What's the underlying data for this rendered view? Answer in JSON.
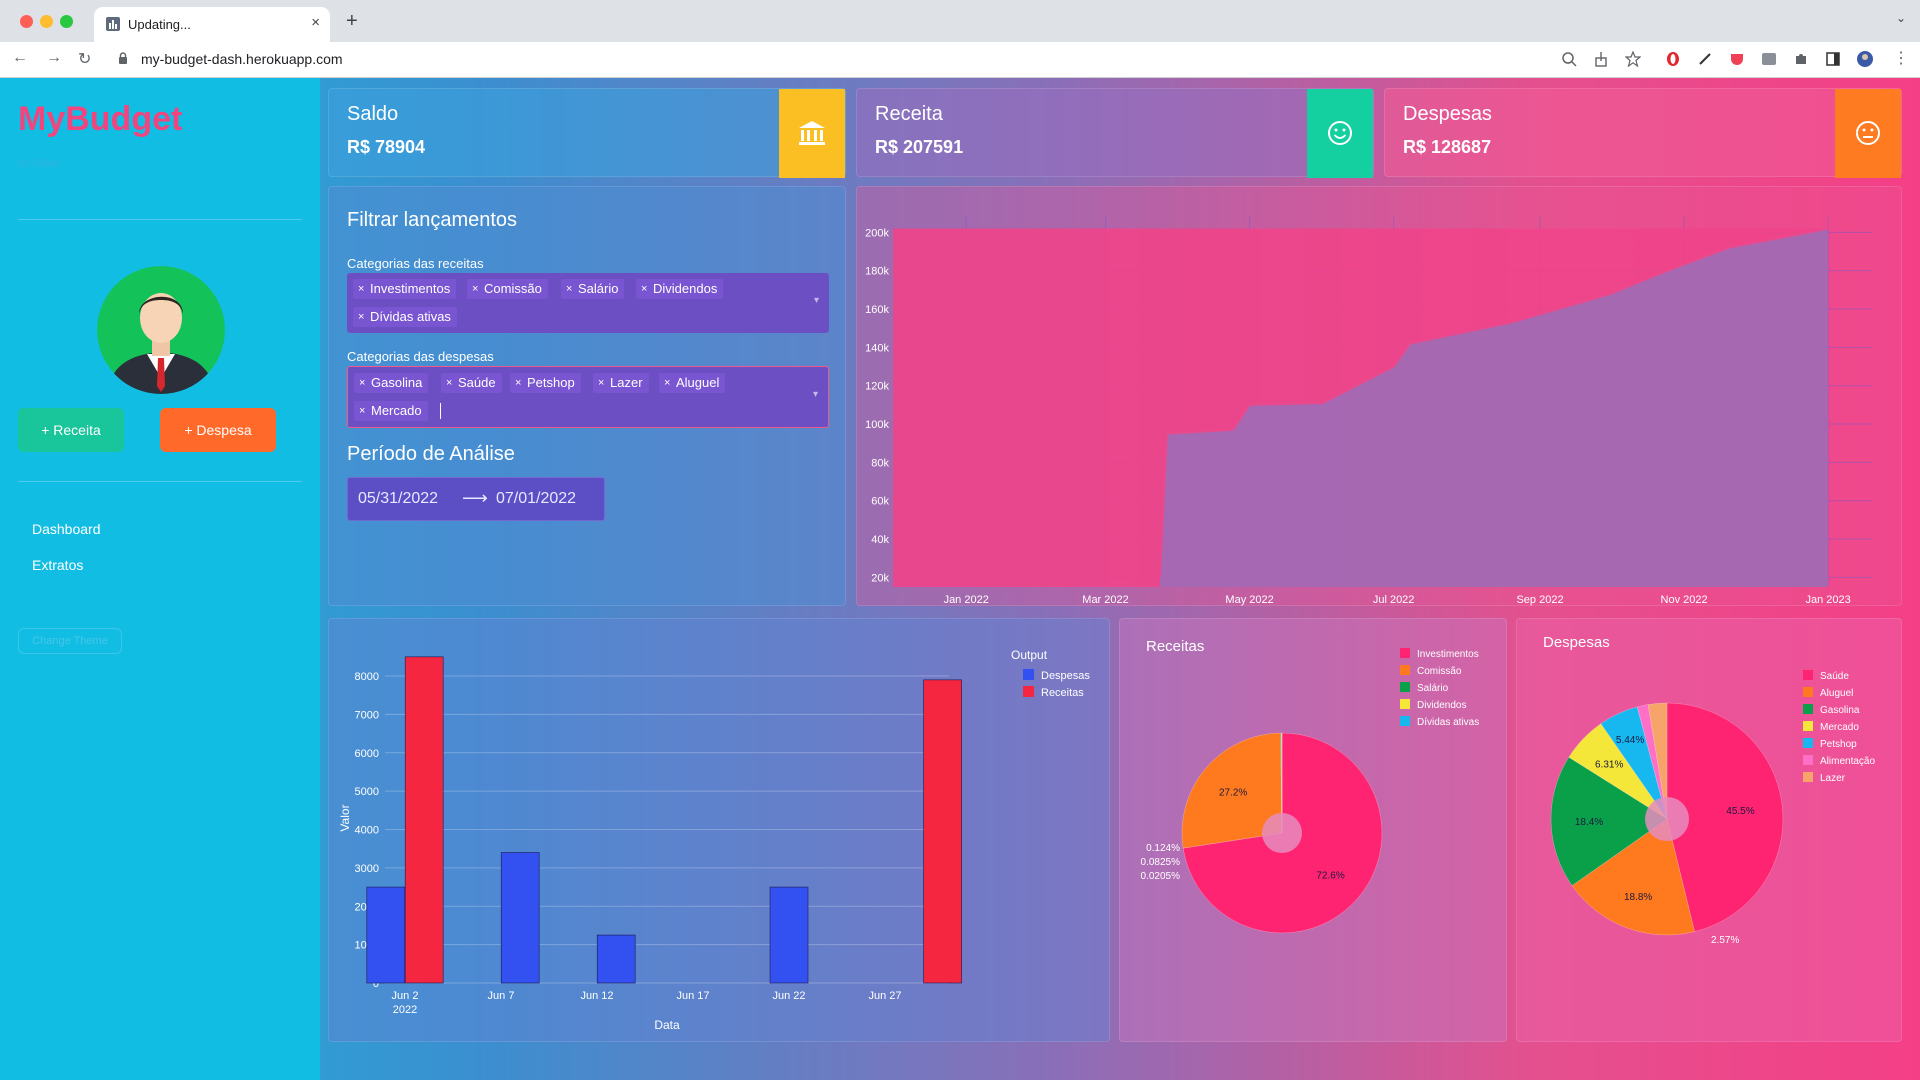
{
  "browser": {
    "tab_title": "Updating...",
    "url": "my-budget-dash.herokuapp.com"
  },
  "sidebar": {
    "brand": "MyBudget",
    "brand_sub": "by Adler",
    "btn_receita": "+ Receita",
    "btn_despesa": "+ Despesa",
    "nav": [
      "Dashboard",
      "Extratos"
    ],
    "change_theme": "Change Theme"
  },
  "kpis": {
    "saldo": {
      "title": "Saldo",
      "value": "R$ 78904",
      "color": "#fbbf24"
    },
    "receita": {
      "title": "Receita",
      "value": "R$ 207591",
      "color": "#14d0a0"
    },
    "despesas": {
      "title": "Despesas",
      "value": "R$ 128687",
      "color": "#ff7b21"
    }
  },
  "filter": {
    "title": "Filtrar lançamentos",
    "receitas_label": "Categorias das receitas",
    "receitas_tags": [
      "Investimentos",
      "Comissão",
      "Salário",
      "Dividendos",
      "Dívidas ativas"
    ],
    "despesas_label": "Categorias das despesas",
    "despesas_tags": [
      "Gasolina",
      "Saúde",
      "Petshop",
      "Lazer",
      "Aluguel",
      "Mercado"
    ],
    "periodo_title": "Período de Análise",
    "date_start": "05/31/2022",
    "date_end": "07/01/2022"
  },
  "chart_data": [
    {
      "type": "area",
      "x_ticks": [
        "Jan 2022",
        "Mar 2022",
        "May 2022",
        "Jul 2022",
        "Sep 2022",
        "Nov 2022",
        "Jan 2023"
      ],
      "y_ticks": [
        "20k",
        "40k",
        "60k",
        "80k",
        "100k",
        "120k",
        "140k",
        "160k",
        "180k",
        "200k"
      ],
      "ylim": [
        15000,
        208000
      ],
      "series": [
        {
          "color": "#f0448a",
          "x": [
            "2021-12-01",
            "2022-03-23",
            "2022-03-27",
            "2022-04-24",
            "2022-07-01",
            "2022-07-08",
            "2022-08-20",
            "2022-09-20",
            "2022-10-25",
            "2022-11-20",
            "2022-12-20",
            "2023-01-01"
          ],
          "y": [
            202000,
            202000,
            202000,
            202000,
            202000,
            202000,
            202000,
            202000,
            202000,
            202000,
            202000,
            202000
          ]
        },
        {
          "color": "#9a6fb9",
          "x": [
            "2022-03-24",
            "2022-03-27",
            "2022-04-24",
            "2022-05-01",
            "2022-06-01",
            "2022-07-01",
            "2022-07-08",
            "2022-08-20",
            "2022-09-20",
            "2022-10-01",
            "2022-10-25",
            "2022-11-20",
            "2022-12-20",
            "2023-01-01"
          ],
          "y": [
            20000,
            95000,
            97000,
            110000,
            111000,
            130000,
            142000,
            153000,
            164000,
            168000,
            180000,
            192000,
            199000,
            202000
          ]
        }
      ]
    },
    {
      "type": "bar",
      "title": "",
      "xlabel": "Data",
      "ylabel": "Valor",
      "legend_title": "Output",
      "x_ticks": [
        "Jun 2\n2022",
        "Jun 7",
        "Jun 12",
        "Jun 17",
        "Jun 22",
        "Jun 27"
      ],
      "y_ticks": [
        0,
        1000,
        2000,
        3000,
        4000,
        5000,
        6000,
        7000,
        8000
      ],
      "ylim": [
        0,
        8600
      ],
      "series": [
        {
          "name": "Despesas",
          "color": "#3350f0",
          "points": [
            {
              "date": "Jun 1",
              "value": 2500
            },
            {
              "date": "Jun 8",
              "value": 3400
            },
            {
              "date": "Jun 13",
              "value": 1250
            },
            {
              "date": "Jun 22",
              "value": 2500
            }
          ]
        },
        {
          "name": "Receitas",
          "color": "#f5263f",
          "points": [
            {
              "date": "Jun 3",
              "value": 8500
            },
            {
              "date": "Jun 30",
              "value": 7900
            }
          ]
        }
      ]
    },
    {
      "type": "pie",
      "title": "Receitas",
      "labels": [
        "Investimentos",
        "Comissão",
        "Salário",
        "Dividendos",
        "Dívidas ativas"
      ],
      "values": [
        72.6,
        27.2,
        0.124,
        0.0825,
        0.0205
      ],
      "value_labels": [
        "72.6%",
        "27.2%",
        "0.124%",
        "0.0825%",
        "0.0205%"
      ],
      "colors": [
        "#ff2472",
        "#ff7a1e",
        "#0aa04a",
        "#f5e63a",
        "#17b8f0"
      ]
    },
    {
      "type": "pie",
      "title": "Despesas",
      "labels": [
        "Saúde",
        "Aluguel",
        "Gasolina",
        "Mercado",
        "Petshop",
        "Alimentação",
        "Lazer"
      ],
      "values": [
        45.5,
        18.8,
        18.4,
        6.31,
        5.44,
        1.5,
        2.57
      ],
      "value_labels": [
        "45.5%",
        "18.8%",
        "18.4%",
        "6.31%",
        "5.44%",
        "",
        "2.57%"
      ],
      "colors": [
        "#ff2472",
        "#ff7a1e",
        "#0aa04a",
        "#f5e63a",
        "#17b8f0",
        "#ff6ec7",
        "#f7a46b"
      ]
    }
  ]
}
